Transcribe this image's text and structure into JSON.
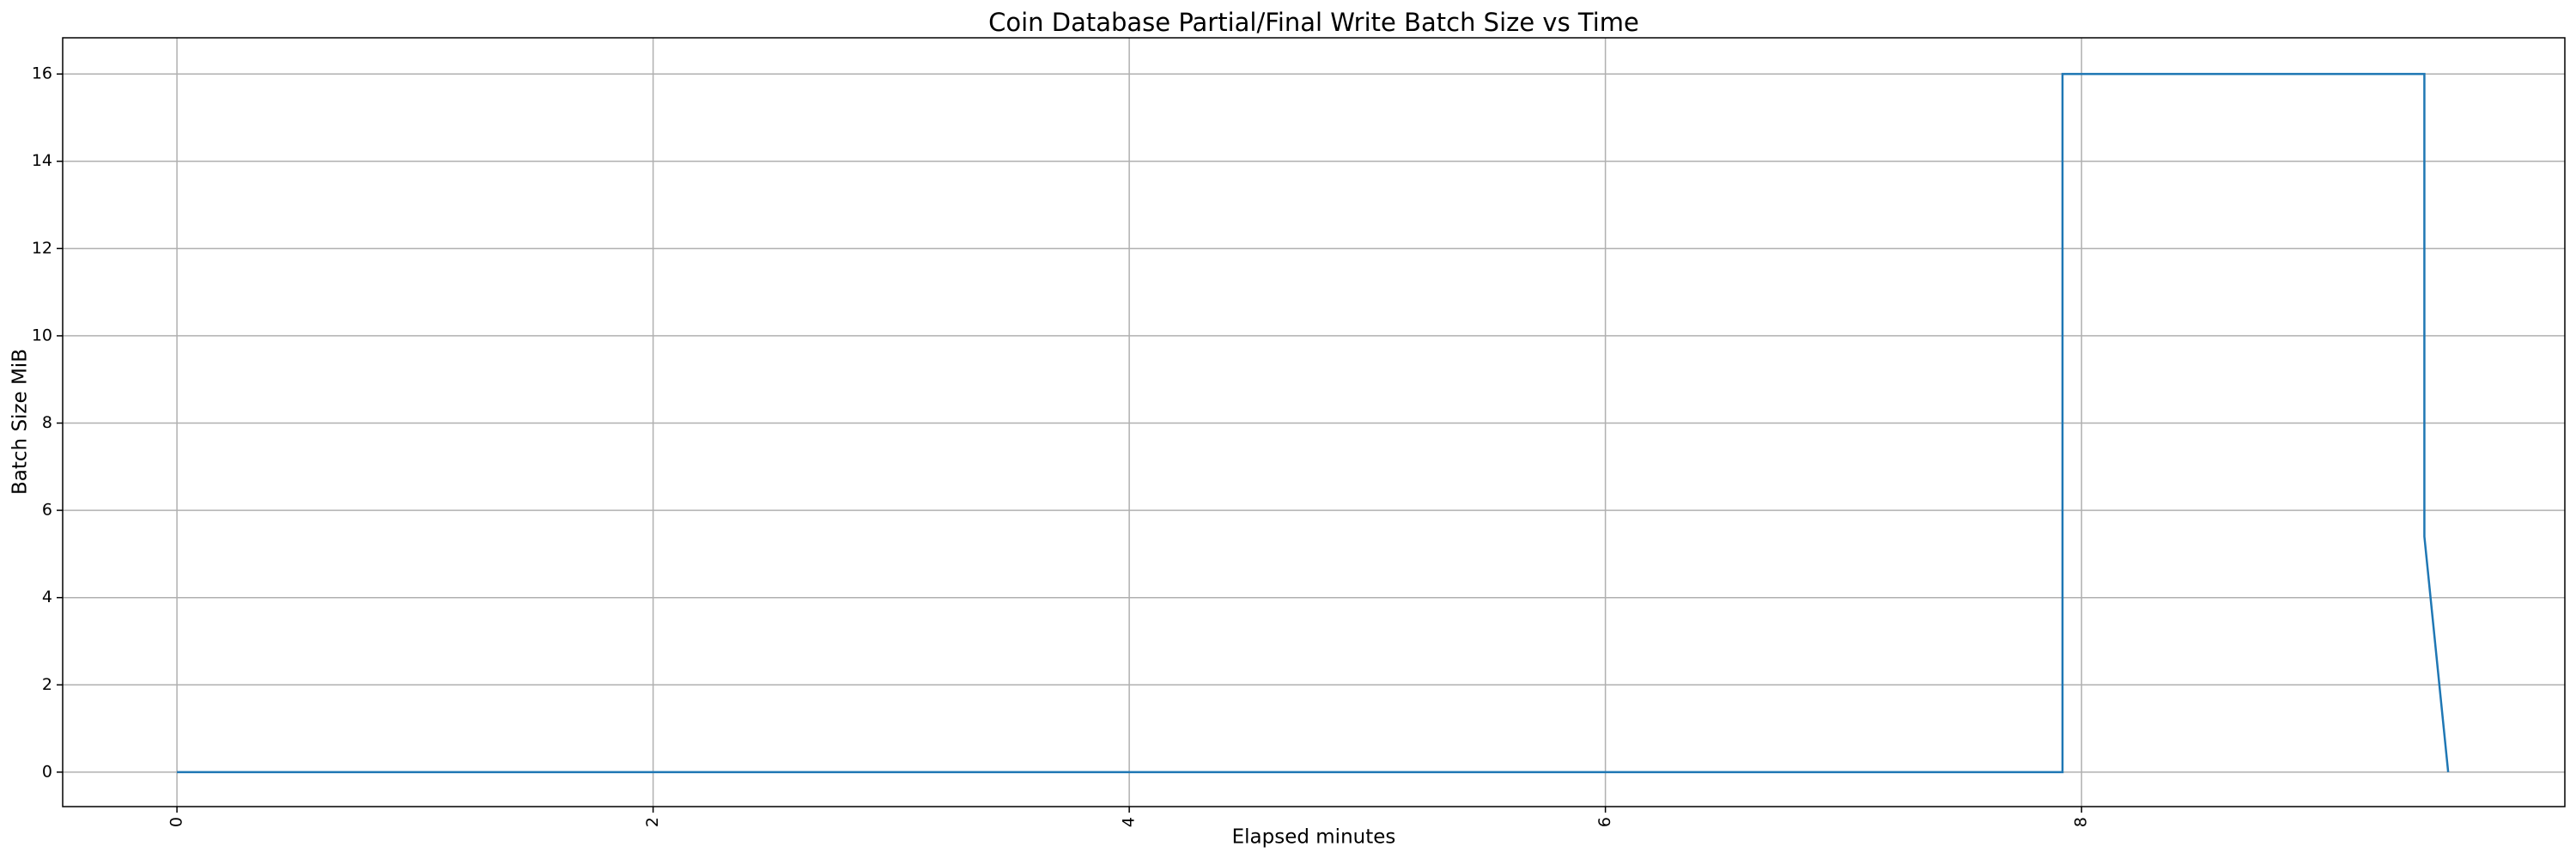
{
  "chart_data": {
    "type": "line",
    "title": "Coin Database Partial/Final Write Batch Size vs Time",
    "xlabel": "Elapsed minutes",
    "ylabel": "Batch Size MiB",
    "x": [
      0,
      7.92,
      7.92,
      9.44,
      9.44,
      9.54
    ],
    "series": [
      {
        "name": "Batch Size MiB",
        "color": "#1f77b4",
        "values": [
          0,
          0,
          16,
          16,
          5.4,
          0
        ]
      }
    ],
    "xlim": [
      -0.48,
      10.03
    ],
    "ylim": [
      -0.79,
      16.83
    ],
    "xticks": [
      0,
      2,
      4,
      6,
      8
    ],
    "yticks": [
      0,
      2,
      4,
      6,
      8,
      10,
      12,
      14,
      16
    ],
    "grid": true
  }
}
